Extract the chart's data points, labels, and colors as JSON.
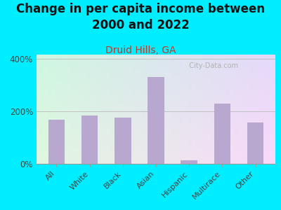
{
  "title": "Change in per capita income between\n2000 and 2022",
  "subtitle": "Druid Hills, GA",
  "categories": [
    "All",
    "White",
    "Black",
    "Asian",
    "Hispanic",
    "Multirace",
    "Other"
  ],
  "values": [
    168,
    183,
    175,
    330,
    12,
    230,
    158
  ],
  "bar_color": "#b8a8d0",
  "title_fontsize": 12,
  "subtitle_fontsize": 10,
  "subtitle_color": "#c0392b",
  "title_color": "#111111",
  "background_color": "#00eeff",
  "plot_bg_left": "#d4ecd4",
  "plot_bg_right": "#f0f8f0",
  "ylabel_ticks": [
    "0%",
    "200%",
    "400%"
  ],
  "ytick_vals": [
    0,
    200,
    400
  ],
  "ylim": [
    0,
    415
  ],
  "watermark": "  City-Data.com"
}
